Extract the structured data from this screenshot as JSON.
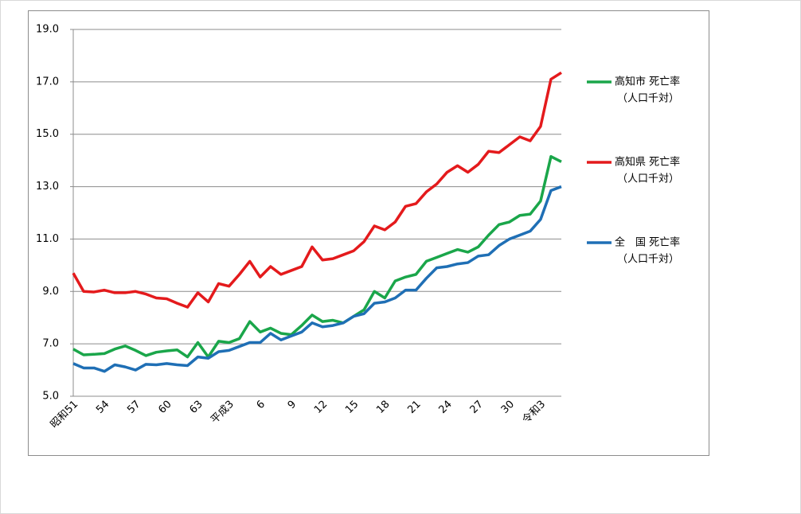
{
  "chart_data": {
    "type": "line",
    "categories": [
      "昭和51",
      null,
      null,
      "54",
      null,
      null,
      "57",
      null,
      null,
      "60",
      null,
      null,
      "63",
      null,
      null,
      "平成3",
      null,
      null,
      "6",
      null,
      null,
      "9",
      null,
      null,
      "12",
      null,
      null,
      "15",
      null,
      null,
      "18",
      null,
      null,
      "21",
      null,
      null,
      "24",
      null,
      null,
      "27",
      null,
      null,
      "30",
      null,
      null,
      "令和3",
      null,
      null
    ],
    "series": [
      {
        "name": "高知市 死亡率",
        "color": "#1aa64a",
        "values": [
          6.8,
          6.58,
          6.6,
          6.63,
          6.8,
          6.92,
          6.75,
          6.55,
          6.68,
          6.73,
          6.77,
          6.5,
          7.05,
          6.5,
          7.1,
          7.05,
          7.2,
          7.85,
          7.45,
          7.6,
          7.4,
          7.35,
          7.7,
          8.1,
          7.85,
          7.9,
          7.8,
          8.05,
          8.3,
          9.0,
          8.75,
          9.4,
          9.55,
          9.65,
          10.15,
          10.3,
          10.45,
          10.6,
          10.5,
          10.7,
          11.15,
          11.55,
          11.65,
          11.9,
          11.95,
          12.45,
          14.15,
          13.95
        ]
      },
      {
        "name": "高知県 死亡率",
        "color": "#e41a1c",
        "values": [
          9.7,
          9.0,
          8.98,
          9.05,
          8.95,
          8.95,
          9.0,
          8.9,
          8.75,
          8.72,
          8.55,
          8.4,
          8.95,
          8.6,
          9.3,
          9.2,
          9.65,
          10.15,
          9.55,
          9.95,
          9.65,
          9.8,
          9.95,
          10.7,
          10.2,
          10.25,
          10.4,
          10.55,
          10.9,
          11.5,
          11.35,
          11.65,
          12.25,
          12.35,
          12.8,
          13.1,
          13.55,
          13.8,
          13.55,
          13.85,
          14.35,
          14.3,
          14.6,
          14.9,
          14.75,
          15.3,
          17.1,
          17.35
        ]
      },
      {
        "name": "全　国 死亡率",
        "color": "#1f6fb5",
        "values": [
          6.25,
          6.08,
          6.08,
          5.95,
          6.2,
          6.12,
          6.0,
          6.22,
          6.2,
          6.25,
          6.2,
          6.17,
          6.5,
          6.45,
          6.7,
          6.75,
          6.9,
          7.05,
          7.05,
          7.4,
          7.15,
          7.3,
          7.45,
          7.8,
          7.65,
          7.7,
          7.8,
          8.05,
          8.15,
          8.55,
          8.6,
          8.75,
          9.05,
          9.05,
          9.5,
          9.9,
          9.95,
          10.05,
          10.1,
          10.35,
          10.4,
          10.75,
          11.0,
          11.15,
          11.3,
          11.75,
          12.85,
          13.0
        ]
      }
    ],
    "legend_note": "（人口千対）",
    "ylim": [
      5,
      19
    ],
    "yticks": [
      {
        "value": 5,
        "label": "5.0"
      },
      {
        "value": 7,
        "label": "7.0"
      },
      {
        "value": 9,
        "label": "9.0"
      },
      {
        "value": 11,
        "label": "11.0"
      },
      {
        "value": 13,
        "label": "13.0"
      },
      {
        "value": 15,
        "label": "15.0"
      },
      {
        "value": 17,
        "label": "17.0"
      },
      {
        "value": 19,
        "label": "19.0"
      }
    ],
    "grid": true,
    "legend": "right"
  }
}
